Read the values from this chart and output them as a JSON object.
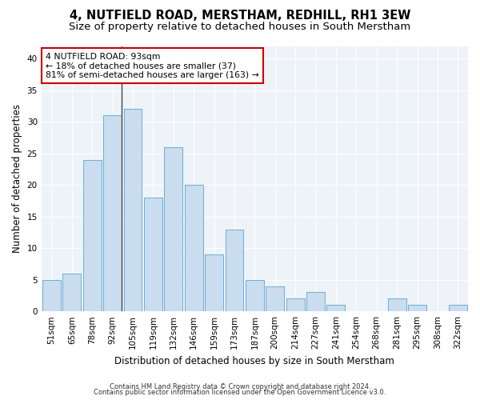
{
  "title": "4, NUTFIELD ROAD, MERSTHAM, REDHILL, RH1 3EW",
  "subtitle": "Size of property relative to detached houses in South Merstham",
  "xlabel": "Distribution of detached houses by size in South Merstham",
  "ylabel": "Number of detached properties",
  "categories": [
    "51sqm",
    "65sqm",
    "78sqm",
    "92sqm",
    "105sqm",
    "119sqm",
    "132sqm",
    "146sqm",
    "159sqm",
    "173sqm",
    "187sqm",
    "200sqm",
    "214sqm",
    "227sqm",
    "241sqm",
    "254sqm",
    "268sqm",
    "281sqm",
    "295sqm",
    "308sqm",
    "322sqm"
  ],
  "values": [
    5,
    6,
    24,
    31,
    32,
    18,
    26,
    20,
    9,
    13,
    5,
    4,
    2,
    3,
    1,
    0,
    0,
    2,
    1,
    0,
    1
  ],
  "bar_color": "#c9ddef",
  "bar_edge_color": "#6aaed6",
  "highlight_line_color": "#444444",
  "ylim": [
    0,
    42
  ],
  "yticks": [
    0,
    5,
    10,
    15,
    20,
    25,
    30,
    35,
    40
  ],
  "annotation_text_line1": "4 NUTFIELD ROAD: 93sqm",
  "annotation_text_line2": "← 18% of detached houses are smaller (37)",
  "annotation_text_line3": "81% of semi-detached houses are larger (163) →",
  "annotation_box_color": "#ffffff",
  "annotation_box_edge": "#cc0000",
  "footer1": "Contains HM Land Registry data © Crown copyright and database right 2024.",
  "footer2": "Contains public sector information licensed under the Open Government Licence v3.0.",
  "title_fontsize": 10.5,
  "subtitle_fontsize": 9.5,
  "tick_fontsize": 7.5,
  "ylabel_fontsize": 8.5,
  "xlabel_fontsize": 8.5,
  "annotation_fontsize": 7.8,
  "footer_fontsize": 6.0,
  "bg_color": "#f0f4f8"
}
